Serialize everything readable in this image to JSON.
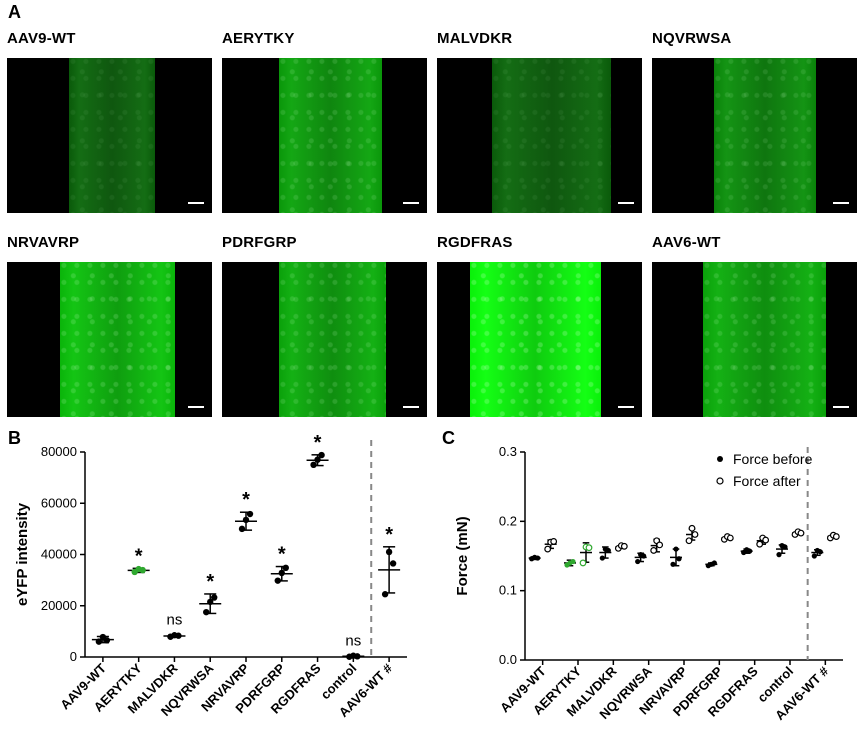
{
  "panels": {
    "A": "A",
    "B": "B",
    "C": "C"
  },
  "images": [
    {
      "label": "AAV9-WT",
      "brightness": 0.25
    },
    {
      "label": "AERYTKY",
      "brightness": 0.55
    },
    {
      "label": "MALVDKR",
      "brightness": 0.25
    },
    {
      "label": "NQVRWSA",
      "brightness": 0.45
    },
    {
      "label": "NRVAVRP",
      "brightness": 0.7
    },
    {
      "label": "PDRFGRP",
      "brightness": 0.6
    },
    {
      "label": "RGDFRAS",
      "brightness": 1.0
    },
    {
      "label": "AAV6-WT",
      "brightness": 0.6
    }
  ],
  "colors": {
    "accent_green": "#2fa82f",
    "tissue_green": "#2bff2b",
    "divider": "#888888"
  },
  "chart_data": [
    {
      "type": "scatter",
      "ylabel": "eYFP intensity",
      "ylim": [
        0,
        80000
      ],
      "yticks": [
        "0",
        "20000",
        "40000",
        "60000",
        "80000"
      ],
      "categories": [
        "AAV9-WT",
        "AERYTKY",
        "MALVDKR",
        "NQVRWSA",
        "NRVAVRP",
        "PDRFGRP",
        "RGDFRAS",
        "control",
        "AAV6-WT #"
      ],
      "means": [
        6800,
        33800,
        8200,
        20800,
        53000,
        32500,
        76800,
        300,
        34000
      ],
      "sds": [
        1200,
        800,
        500,
        3800,
        3500,
        2800,
        2100,
        300,
        9000
      ],
      "points": [
        [
          6000,
          7800,
          6500
        ],
        [
          33200,
          34300,
          33900
        ],
        [
          7900,
          8500,
          8300
        ],
        [
          17500,
          21500,
          23200
        ],
        [
          50000,
          53500,
          55800
        ],
        [
          29800,
          32800,
          34800
        ],
        [
          75000,
          77000,
          78800
        ],
        [
          100,
          500,
          250
        ],
        [
          24500,
          41000,
          36500
        ]
      ],
      "annotations": [
        "",
        "*",
        "ns",
        "*",
        "*",
        "*",
        "*",
        "ns",
        "*"
      ],
      "highlight_index": 1
    },
    {
      "type": "scatter",
      "ylabel": "Force (mN)",
      "ylim": [
        0,
        0.3
      ],
      "yticks": [
        "0.0",
        "0.1",
        "0.2",
        "0.3"
      ],
      "categories": [
        "AAV9-WT",
        "AERYTKY",
        "MALVDKR",
        "NQVRWSA",
        "NRVAVRP",
        "PDRFGRP",
        "RGDFRAS",
        "control",
        "AAV6-WT #"
      ],
      "legend": [
        "Force before",
        "Force after"
      ],
      "legend_position": "top-right",
      "before": {
        "means": [
          0.147,
          0.14,
          0.155,
          0.148,
          0.148,
          0.138,
          0.157,
          0.16,
          0.155
        ],
        "sds": [
          0.002,
          0.004,
          0.008,
          0.006,
          0.012,
          0.002,
          0.003,
          0.006,
          0.004
        ],
        "points": [
          [
            0.146,
            0.148,
            0.147
          ],
          [
            0.137,
            0.14,
            0.142
          ],
          [
            0.147,
            0.16,
            0.158
          ],
          [
            0.142,
            0.152,
            0.15
          ],
          [
            0.138,
            0.16,
            0.146
          ],
          [
            0.136,
            0.138,
            0.14
          ],
          [
            0.155,
            0.159,
            0.157
          ],
          [
            0.152,
            0.165,
            0.163
          ],
          [
            0.15,
            0.158,
            0.156
          ]
        ]
      },
      "after": {
        "means": [
          0.167,
          0.155,
          0.163,
          0.165,
          0.181,
          0.176,
          0.172,
          0.183,
          0.178
        ],
        "sds": [
          0.006,
          0.014,
          0.002,
          0.009,
          0.008,
          0.002,
          0.005,
          0.002,
          0.002
        ],
        "points": [
          [
            0.16,
            0.17,
            0.171
          ],
          [
            0.14,
            0.163,
            0.162
          ],
          [
            0.161,
            0.165,
            0.164
          ],
          [
            0.158,
            0.172,
            0.166
          ],
          [
            0.172,
            0.19,
            0.181
          ],
          [
            0.174,
            0.178,
            0.176
          ],
          [
            0.167,
            0.176,
            0.173
          ],
          [
            0.181,
            0.185,
            0.183
          ],
          [
            0.176,
            0.18,
            0.178
          ]
        ]
      },
      "highlight_index": 1
    }
  ]
}
